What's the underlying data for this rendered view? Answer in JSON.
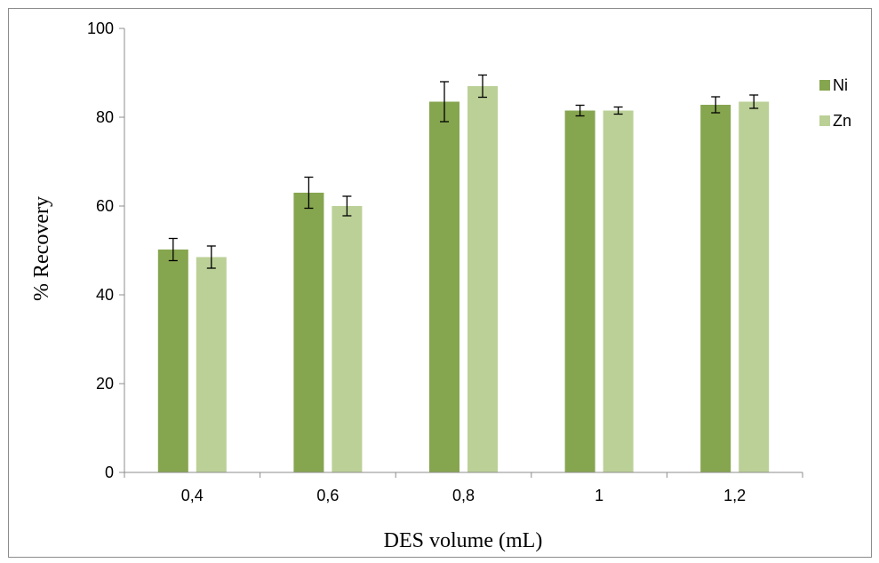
{
  "chart_data": {
    "type": "bar",
    "categories": [
      "0,4",
      "0,6",
      "0,8",
      "1",
      "1,2"
    ],
    "series": [
      {
        "name": "Ni",
        "values": [
          50.2,
          63.0,
          83.5,
          81.5,
          82.8
        ],
        "errors": [
          2.5,
          3.5,
          4.5,
          1.2,
          1.8
        ],
        "color": "#86a54f"
      },
      {
        "name": "Zn",
        "values": [
          48.5,
          60.0,
          87.0,
          81.5,
          83.5
        ],
        "errors": [
          2.5,
          2.2,
          2.5,
          0.8,
          1.5
        ],
        "color": "#bbd097"
      }
    ],
    "xlabel": "DES volume (mL)",
    "ylabel": "% Recovery",
    "ylim": [
      0,
      100
    ],
    "yticks": [
      0,
      20,
      40,
      60,
      80,
      100
    ],
    "grid": false,
    "legend_position": "top-right"
  }
}
